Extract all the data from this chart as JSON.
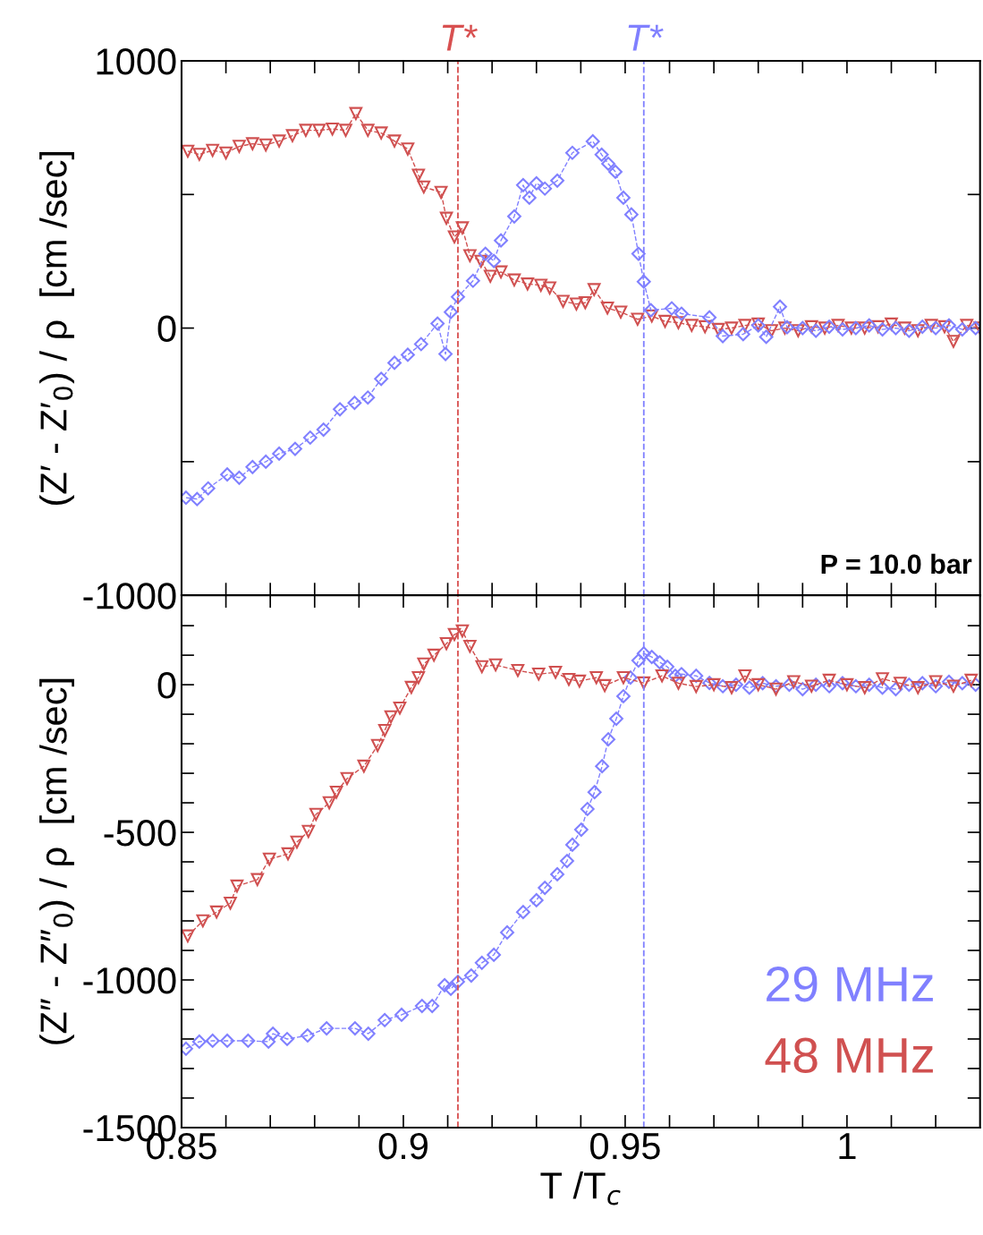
{
  "chart_data": [
    {
      "type": "line",
      "ylabel": "(Z′ - Z′$_{0}$) / ρ  [cm /sec]",
      "xlim": [
        0.85,
        1.03
      ],
      "ylim": [
        -1000,
        1000
      ],
      "xticks": [
        {
          "value": 0.85,
          "label": null
        },
        {
          "value": 0.86,
          "label": null
        },
        {
          "value": 0.87,
          "label": null
        },
        {
          "value": 0.88,
          "label": null
        },
        {
          "value": 0.89,
          "label": null
        },
        {
          "value": 0.9,
          "label": null
        },
        {
          "value": 0.91,
          "label": null
        },
        {
          "value": 0.92,
          "label": null
        },
        {
          "value": 0.93,
          "label": null
        },
        {
          "value": 0.94,
          "label": null
        },
        {
          "value": 0.95,
          "label": null
        },
        {
          "value": 0.96,
          "label": null
        },
        {
          "value": 0.97,
          "label": null
        },
        {
          "value": 0.98,
          "label": null
        },
        {
          "value": 0.99,
          "label": null
        },
        {
          "value": 1.0,
          "label": null
        },
        {
          "value": 1.01,
          "label": null
        },
        {
          "value": 1.02,
          "label": null
        }
      ],
      "yticks": [
        -1000,
        {
          "value": -500,
          "label": null
        },
        0,
        {
          "value": 500,
          "label": null
        },
        1000
      ],
      "tick_labels": "y",
      "line_style": "dashed",
      "grid": false,
      "legend": false,
      "annotations": [
        "P = 10.0 bar"
      ],
      "ref_lines": [
        {
          "axis": "x",
          "value": 0.9123,
          "label": "T*",
          "color": "#d85050",
          "line_style": "dashed"
        },
        {
          "axis": "x",
          "value": 0.9542,
          "label": "T*",
          "color": "#8080ff",
          "line_style": "dashed"
        }
      ],
      "series": [
        {
          "color": "#d05050",
          "marker": "triangle",
          "x": [
            0.8514,
            0.854,
            0.857,
            0.86,
            0.863,
            0.866,
            0.869,
            0.872,
            0.875,
            0.878,
            0.881,
            0.884,
            0.887,
            0.8893,
            0.892,
            0.895,
            0.898,
            0.901,
            0.9034,
            0.9046,
            0.9085,
            0.9097,
            0.9115,
            0.9133,
            0.915,
            0.9175,
            0.9196,
            0.922,
            0.925,
            0.928,
            0.931,
            0.933,
            0.936,
            0.939,
            0.941,
            0.943,
            0.946,
            0.949,
            0.9528,
            0.956,
            0.959,
            0.962,
            0.965,
            0.968,
            0.971,
            0.974,
            0.977,
            0.98,
            0.983,
            0.986,
            0.989,
            0.992,
            0.995,
            0.998,
            1.001,
            1.004,
            1.007,
            1.01,
            1.013,
            1.016,
            1.019,
            1.022,
            1.024,
            1.027,
            1.03
          ],
          "values": [
            662,
            650,
            665,
            655,
            680,
            690,
            685,
            700,
            720,
            740,
            740,
            745,
            740,
            803,
            740,
            730,
            700,
            670,
            572,
            528,
            508,
            411,
            341,
            375,
            271,
            250,
            194,
            210,
            180,
            165,
            160,
            150,
            100,
            90,
            95,
            144,
            75,
            60,
            33,
            45,
            25,
            20,
            10,
            5,
            -5,
            0,
            10,
            15,
            -10,
            0,
            -10,
            5,
            0,
            10,
            0,
            0,
            5,
            15,
            0,
            -10,
            10,
            5,
            -50,
            10,
            0
          ]
        },
        {
          "color": "#8080ff",
          "marker": "diamond",
          "x": [
            0.851,
            0.8535,
            0.856,
            0.8603,
            0.863,
            0.866,
            0.869,
            0.872,
            0.8756,
            0.879,
            0.882,
            0.8857,
            0.889,
            0.892,
            0.895,
            0.898,
            0.901,
            0.904,
            0.9077,
            0.9095,
            0.9107,
            0.9123,
            0.9157,
            0.9185,
            0.9204,
            0.922,
            0.925,
            0.927,
            0.9284,
            0.93,
            0.9319,
            0.9347,
            0.9381,
            0.9427,
            0.9447,
            0.9462,
            0.9478,
            0.9496,
            0.9514,
            0.953,
            0.9542,
            0.9558,
            0.9605,
            0.9627,
            0.969,
            0.972,
            0.9766,
            0.98,
            0.9818,
            0.9849,
            0.9865,
            0.99,
            0.993,
            0.996,
            0.999,
            1.002,
            1.005,
            1.008,
            1.011,
            1.014,
            1.017,
            1.02,
            1.023,
            1.026,
            1.029
          ],
          "values": [
            -635,
            -640,
            -600,
            -548,
            -560,
            -520,
            -500,
            -470,
            -452,
            -410,
            -380,
            -304,
            -280,
            -260,
            -190,
            -130,
            -100,
            -60,
            17,
            -97,
            60,
            117,
            177,
            278,
            251,
            328,
            418,
            535,
            488,
            542,
            522,
            552,
            656,
            699,
            649,
            615,
            585,
            488,
            425,
            278,
            174,
            67,
            74,
            54,
            40,
            -30,
            -23,
            10,
            -33,
            80,
            3,
            0,
            -10,
            5,
            -5,
            0,
            10,
            -5,
            0,
            -10,
            5,
            0,
            10,
            -5,
            0
          ]
        }
      ]
    },
    {
      "type": "line",
      "ylabel": "(Z″ - Z″$_{0}$) / ρ  [cm /sec]",
      "xlabel": "T /T$_{c}$",
      "xlim": [
        0.85,
        1.03
      ],
      "ylim": [
        -1500,
        303
      ],
      "xticks": [
        0.85,
        {
          "value": 0.86,
          "label": null
        },
        {
          "value": 0.87,
          "label": null
        },
        {
          "value": 0.88,
          "label": null
        },
        {
          "value": 0.89,
          "label": null
        },
        {
          "value": 0.9,
          "label": "0.9"
        },
        {
          "value": 0.91,
          "label": null
        },
        {
          "value": 0.92,
          "label": null
        },
        {
          "value": 0.93,
          "label": null
        },
        {
          "value": 0.94,
          "label": null
        },
        0.95,
        {
          "value": 0.96,
          "label": null
        },
        {
          "value": 0.97,
          "label": null
        },
        {
          "value": 0.98,
          "label": null
        },
        {
          "value": 0.99,
          "label": null
        },
        {
          "value": 1.0,
          "label": "1"
        },
        {
          "value": 1.01,
          "label": null
        },
        {
          "value": 1.02,
          "label": null
        }
      ],
      "yticks": [
        -1500,
        {
          "value": -1400,
          "label": null
        },
        {
          "value": -1300,
          "label": null
        },
        {
          "value": -1200,
          "label": null
        },
        {
          "value": -1100,
          "label": null
        },
        -1000,
        {
          "value": -900,
          "label": null
        },
        {
          "value": -800,
          "label": null
        },
        {
          "value": -700,
          "label": null
        },
        {
          "value": -600,
          "label": null
        },
        -500,
        {
          "value": -400,
          "label": null
        },
        {
          "value": -300,
          "label": null
        },
        {
          "value": -200,
          "label": null
        },
        {
          "value": -100,
          "label": null
        },
        0,
        {
          "value": 100,
          "label": null
        },
        {
          "value": 200,
          "label": null
        }
      ],
      "line_style": "dashed",
      "grid": false,
      "legend": "bottom right",
      "ref_lines": [
        {
          "axis": "x",
          "value": 0.9123,
          "color": "#d85050",
          "line_style": "dashed"
        },
        {
          "axis": "x",
          "value": 0.9542,
          "color": "#8080ff",
          "line_style": "dashed"
        }
      ],
      "series": [
        {
          "name": "29 MHz",
          "color": "#8080ff",
          "marker": "diamond",
          "x": [
            0.851,
            0.854,
            0.857,
            0.8603,
            0.865,
            0.8696,
            0.8706,
            0.8738,
            0.8784,
            0.8827,
            0.8891,
            0.8921,
            0.8958,
            0.8996,
            0.9042,
            0.9065,
            0.9093,
            0.9107,
            0.9123,
            0.9153,
            0.9177,
            0.9204,
            0.9234,
            0.927,
            0.93,
            0.9319,
            0.9347,
            0.9369,
            0.9381,
            0.9401,
            0.9415,
            0.9431,
            0.9448,
            0.9462,
            0.948,
            0.9496,
            0.9512,
            0.953,
            0.9542,
            0.956,
            0.9578,
            0.9595,
            0.9613,
            0.9627,
            0.966,
            0.969,
            0.972,
            0.975,
            0.978,
            0.981,
            0.984,
            0.987,
            0.99,
            0.993,
            0.996,
            0.999,
            1.002,
            1.005,
            1.008,
            1.011,
            1.014,
            1.017,
            1.02,
            1.023,
            1.026,
            1.029
          ],
          "values": [
            -1233,
            -1209,
            -1206,
            -1206,
            -1206,
            -1209,
            -1182,
            -1200,
            -1188,
            -1164,
            -1164,
            -1182,
            -1136,
            -1118,
            -1088,
            -1088,
            -1018,
            -1030,
            -1006,
            -985,
            -942,
            -915,
            -839,
            -770,
            -730,
            -688,
            -642,
            -597,
            -542,
            -491,
            -421,
            -364,
            -276,
            -185,
            -115,
            -39,
            24,
            82,
            106,
            94,
            76,
            61,
            30,
            36,
            30,
            6,
            -5,
            0,
            -10,
            5,
            -5,
            0,
            -15,
            0,
            -5,
            5,
            -5,
            0,
            -10,
            -15,
            0,
            5,
            -5,
            10,
            5,
            0
          ]
        },
        {
          "name": "48 MHz",
          "color": "#d05050",
          "marker": "triangle",
          "x": [
            0.8514,
            0.8548,
            0.8579,
            0.861,
            0.8625,
            0.8671,
            0.8698,
            0.874,
            0.876,
            0.8786,
            0.8803,
            0.8833,
            0.8849,
            0.8873,
            0.8911,
            0.8942,
            0.8958,
            0.8972,
            0.8992,
            0.9018,
            0.9034,
            0.9046,
            0.9069,
            0.9097,
            0.9115,
            0.9133,
            0.915,
            0.9177,
            0.9208,
            0.9258,
            0.9305,
            0.9343,
            0.9373,
            0.9397,
            0.9435,
            0.9454,
            0.9496,
            0.9542,
            0.9583,
            0.962,
            0.966,
            0.97,
            0.974,
            0.977,
            0.98,
            0.984,
            0.988,
            0.992,
            0.996,
            1.0,
            1.004,
            1.008,
            1.012,
            1.016,
            1.02,
            1.024,
            1.028
          ],
          "values": [
            -851,
            -800,
            -770,
            -740,
            -682,
            -660,
            -591,
            -573,
            -533,
            -497,
            -439,
            -400,
            -364,
            -318,
            -276,
            -206,
            -155,
            -109,
            -79,
            -9,
            24,
            70,
            100,
            139,
            170,
            182,
            130,
            61,
            67,
            48,
            36,
            42,
            18,
            12,
            24,
            -3,
            24,
            6,
            30,
            5,
            -6,
            0,
            -10,
            30,
            0,
            -15,
            10,
            -5,
            15,
            0,
            -10,
            20,
            5,
            -10,
            10,
            -5,
            15
          ]
        }
      ]
    }
  ]
}
